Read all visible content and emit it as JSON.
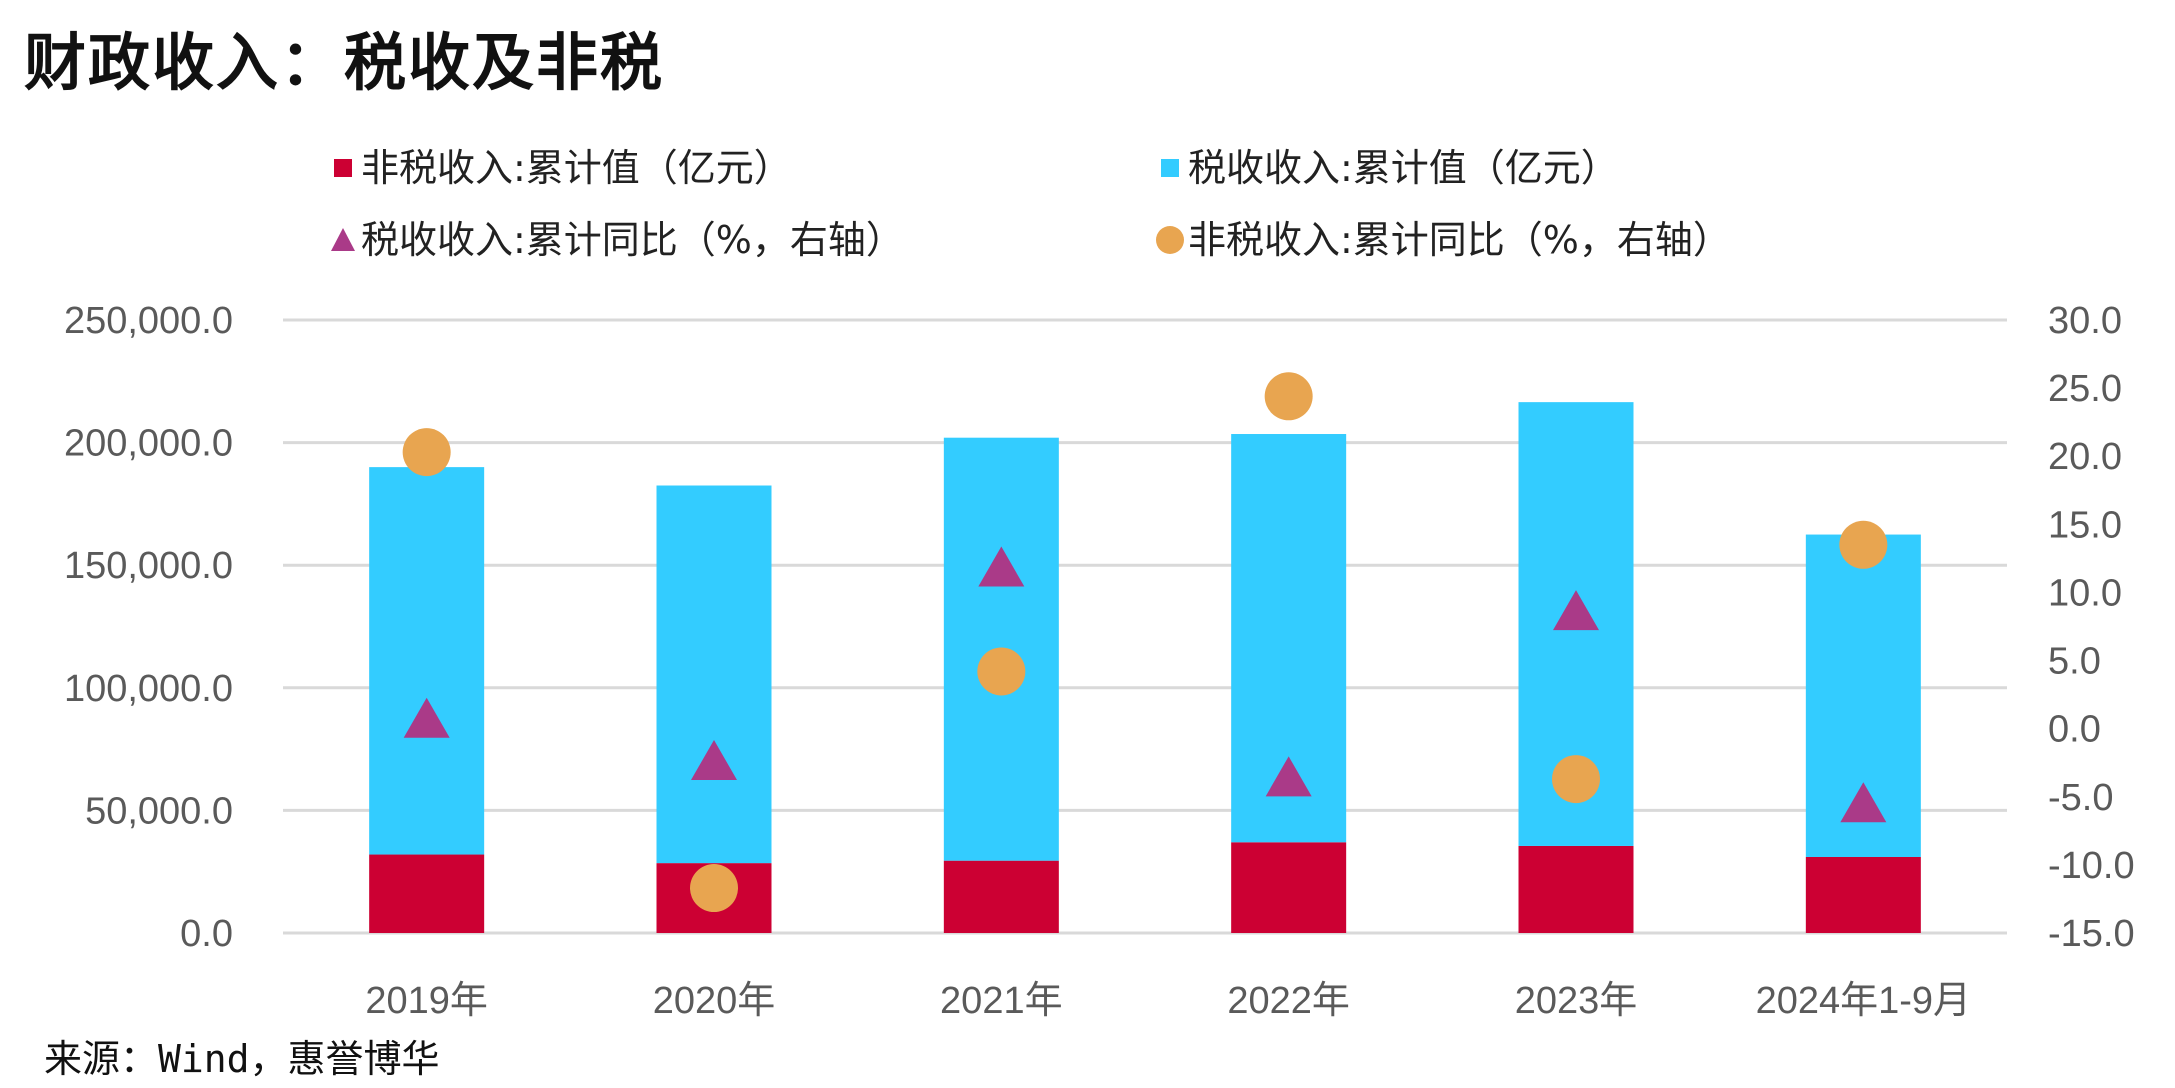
{
  "title": "财政收入：税收及非税",
  "source": "来源：Wind，惠誉博华",
  "colors": {
    "nontax_bar": "#CC0033",
    "tax_bar": "#33CCFF",
    "tax_yoy": "#AA3A88",
    "nontax_yoy": "#E8A550",
    "grid": "#d9d9d9"
  },
  "chart_data": {
    "type": "bar",
    "stacked": true,
    "categories": [
      "2019年",
      "2020年",
      "2021年",
      "2022年",
      "2023年",
      "2024年1-9月"
    ],
    "series": [
      {
        "name": "非税收入:累计值（亿元）",
        "kind": "bar",
        "axis": "left",
        "values": [
          32000,
          28500,
          29500,
          37000,
          35500,
          31000
        ]
      },
      {
        "name": "税收收入:累计值（亿元）",
        "kind": "bar",
        "axis": "left",
        "values": [
          158000,
          154000,
          172500,
          166500,
          181000,
          131500
        ]
      },
      {
        "name": "税收收入:累计同比（%，右轴）",
        "kind": "triangle",
        "axis": "right",
        "values": [
          0.8,
          -2.3,
          11.9,
          -3.5,
          8.7,
          -5.4
        ]
      },
      {
        "name": "非税收入:累计同比（%，右轴）",
        "kind": "circle",
        "axis": "right",
        "values": [
          20.3,
          -11.7,
          4.2,
          24.4,
          -3.7,
          13.5
        ]
      }
    ],
    "left_axis": {
      "min": 0,
      "max": 250000,
      "step": 50000,
      "tick_labels": [
        "0.0",
        "50,000.0",
        "100,000.0",
        "150,000.0",
        "200,000.0",
        "250,000.0"
      ]
    },
    "right_axis": {
      "min": -15,
      "max": 30,
      "step": 5,
      "tick_labels": [
        "-15.0",
        "-10.0",
        "-5.0",
        "0.0",
        "5.0",
        "10.0",
        "15.0",
        "20.0",
        "25.0",
        "30.0"
      ]
    },
    "grid": true,
    "legend_position": "top"
  }
}
